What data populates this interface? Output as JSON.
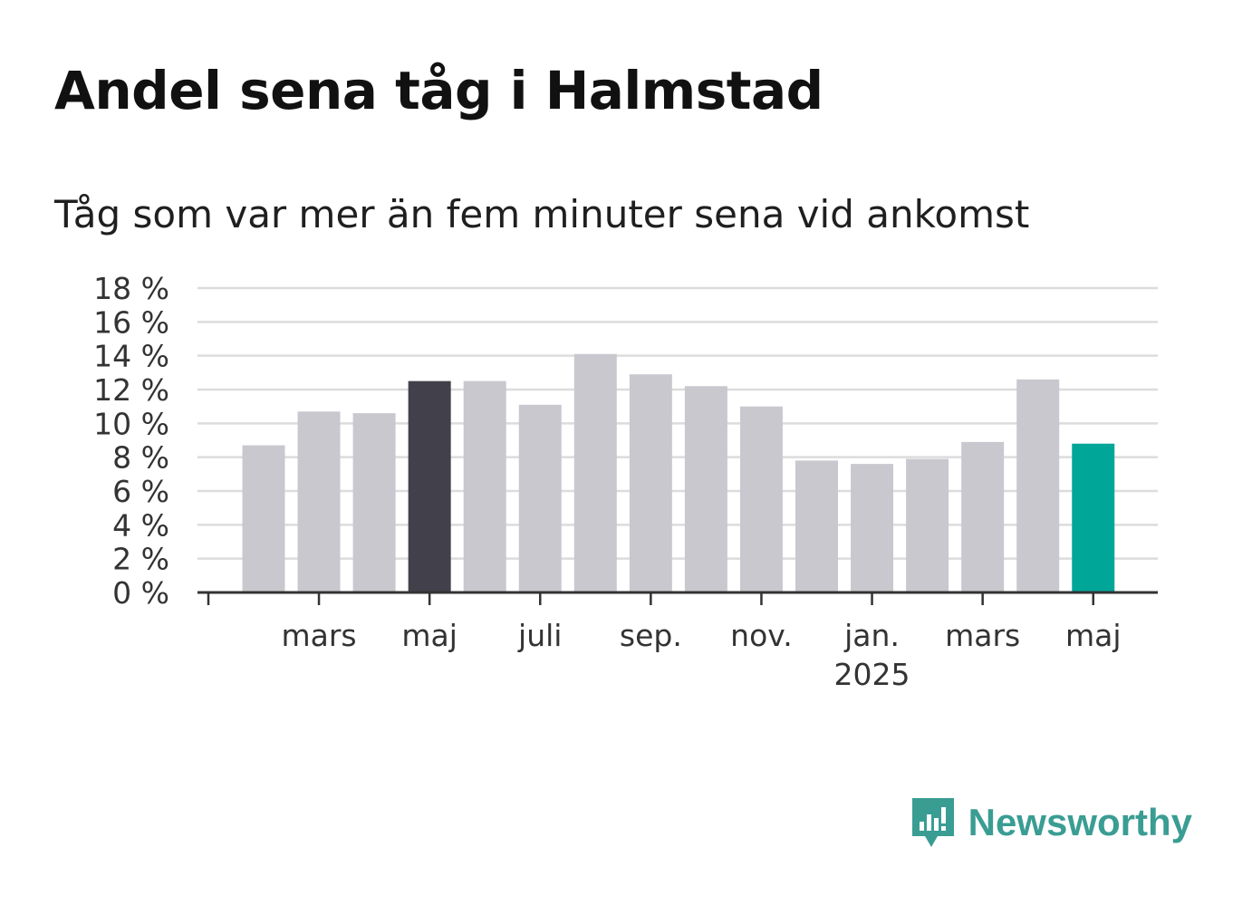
{
  "header": {
    "title": "Andel sena tåg i Halmstad",
    "subtitle": "Tåg som var mer än fem minuter sena vid ankomst"
  },
  "brand": {
    "name": "Newsworthy",
    "logo_icon": "newsworthy-bar-chart-icon",
    "color": "#3a9d93"
  },
  "colors": {
    "bar_default": "#c9c8ce",
    "bar_highlight_previous": "#42404b",
    "bar_highlight_current": "#00a698",
    "grid": "#dcdcdc",
    "axis": "#333333"
  },
  "chart_data": {
    "type": "bar",
    "title": "Andel sena tåg i Halmstad",
    "subtitle": "Tåg som var mer än fem minuter sena vid ankomst",
    "xlabel": "",
    "ylabel": "",
    "categories": [
      "2024-02",
      "2024-03",
      "2024-04",
      "2024-05",
      "2024-06",
      "2024-07",
      "2024-08",
      "2024-09",
      "2024-10",
      "2024-11",
      "2024-12",
      "2025-01",
      "2025-02",
      "2025-03",
      "2025-04",
      "2025-05"
    ],
    "values": [
      8.7,
      10.7,
      10.6,
      12.5,
      12.5,
      11.1,
      14.1,
      12.9,
      12.2,
      11.0,
      7.8,
      7.6,
      7.9,
      8.9,
      12.6,
      8.8
    ],
    "highlight": {
      "2024-05": "previous",
      "2025-05": "current"
    },
    "ylim": [
      0,
      18
    ],
    "yticks": [
      0,
      2,
      4,
      6,
      8,
      10,
      12,
      14,
      16,
      18
    ],
    "ytick_labels": [
      "0 %",
      "2 %",
      "4 %",
      "6 %",
      "8 %",
      "10 %",
      "12 %",
      "14 %",
      "16 %",
      "18 %"
    ],
    "xtick_labels": [
      {
        "category": "2024-03",
        "lines": [
          "mars"
        ]
      },
      {
        "category": "2024-05",
        "lines": [
          "maj"
        ]
      },
      {
        "category": "2024-07",
        "lines": [
          "juli"
        ]
      },
      {
        "category": "2024-09",
        "lines": [
          "sep."
        ]
      },
      {
        "category": "2024-11",
        "lines": [
          "nov."
        ]
      },
      {
        "category": "2025-01",
        "lines": [
          "jan.",
          "2025"
        ]
      },
      {
        "category": "2025-03",
        "lines": [
          "mars"
        ]
      },
      {
        "category": "2025-05",
        "lines": [
          "maj"
        ]
      }
    ],
    "grid": true,
    "legend": "none"
  }
}
